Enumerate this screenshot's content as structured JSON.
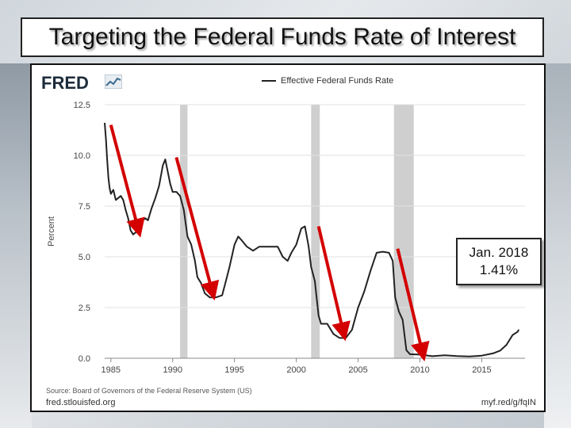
{
  "slide": {
    "title": "Targeting the Federal Funds Rate of Interest",
    "callout_line1": "Jan. 2018",
    "callout_line2": "1.41%"
  },
  "fred": {
    "logo": "FRED",
    "source": "Source: Board of Governors of the Federal Reserve System (US)",
    "footer_left": "fred.stlouisfed.org",
    "footer_right": "myf.red/g/fqIN"
  },
  "colors": {
    "series": "#222222",
    "recession": "#cfcfcf",
    "arrow": "#d40000"
  },
  "chart_data": {
    "type": "line",
    "title": "",
    "xlabel": "",
    "ylabel": "Percent",
    "xlim": [
      1984.5,
      2018.5
    ],
    "ylim": [
      0,
      12.5
    ],
    "yticks": [
      0.0,
      2.5,
      5.0,
      7.5,
      10.0,
      12.5
    ],
    "ytick_labels": [
      "0.0",
      "2.5",
      "5.0",
      "7.5",
      "10.0",
      "12.5"
    ],
    "xticks": [
      1985,
      1990,
      1995,
      2000,
      2005,
      2010,
      2015
    ],
    "xtick_labels": [
      "1985",
      "1990",
      "1995",
      "2000",
      "2005",
      "2010",
      "2015"
    ],
    "recessions": [
      [
        1990.6,
        1991.2
      ],
      [
        2001.2,
        2001.9
      ],
      [
        2007.9,
        2009.5
      ]
    ],
    "series": [
      {
        "name": "Effective Federal Funds Rate",
        "x": [
          1984.5,
          1984.6,
          1984.7,
          1984.8,
          1984.9,
          1985.0,
          1985.2,
          1985.4,
          1985.6,
          1985.8,
          1986.0,
          1986.2,
          1986.4,
          1986.6,
          1986.8,
          1987.0,
          1987.2,
          1987.4,
          1987.6,
          1987.8,
          1988.0,
          1988.3,
          1988.6,
          1988.9,
          1989.2,
          1989.4,
          1989.6,
          1989.8,
          1990.0,
          1990.3,
          1990.6,
          1990.9,
          1991.2,
          1991.5,
          1991.8,
          1992.0,
          1992.3,
          1992.6,
          1993.0,
          1993.5,
          1994.0,
          1994.3,
          1994.6,
          1995.0,
          1995.3,
          1995.6,
          1996.0,
          1996.5,
          1997.0,
          1997.5,
          1998.0,
          1998.5,
          1998.9,
          1999.3,
          1999.6,
          2000.0,
          2000.4,
          2000.7,
          2001.0,
          2001.2,
          2001.5,
          2001.8,
          2002.0,
          2002.5,
          2003.0,
          2003.5,
          2004.0,
          2004.5,
          2005.0,
          2005.5,
          2006.0,
          2006.5,
          2007.0,
          2007.5,
          2007.8,
          2008.0,
          2008.3,
          2008.6,
          2008.9,
          2009.2,
          2010.0,
          2011.0,
          2012.0,
          2013.0,
          2014.0,
          2015.0,
          2015.9,
          2016.5,
          2017.0,
          2017.5,
          2017.9,
          2018.0
        ],
        "y": [
          11.6,
          10.8,
          9.8,
          8.9,
          8.4,
          8.1,
          8.3,
          7.8,
          7.9,
          8.0,
          7.8,
          7.3,
          6.9,
          6.3,
          6.1,
          6.2,
          6.4,
          6.7,
          6.8,
          6.9,
          6.8,
          7.4,
          7.9,
          8.5,
          9.5,
          9.8,
          9.2,
          8.6,
          8.2,
          8.2,
          8.0,
          7.3,
          6.0,
          5.6,
          4.8,
          4.0,
          3.7,
          3.2,
          3.0,
          3.0,
          3.1,
          3.8,
          4.5,
          5.6,
          6.0,
          5.8,
          5.5,
          5.3,
          5.5,
          5.5,
          5.5,
          5.5,
          5.0,
          4.8,
          5.2,
          5.6,
          6.4,
          6.5,
          5.5,
          4.5,
          3.8,
          2.1,
          1.7,
          1.7,
          1.2,
          1.0,
          1.0,
          1.4,
          2.5,
          3.3,
          4.3,
          5.2,
          5.25,
          5.2,
          4.8,
          3.0,
          2.3,
          1.9,
          0.4,
          0.2,
          0.18,
          0.1,
          0.15,
          0.11,
          0.09,
          0.13,
          0.24,
          0.38,
          0.66,
          1.15,
          1.3,
          1.41
        ]
      }
    ],
    "arrows": [
      {
        "from": [
          1985.0,
          11.5
        ],
        "to": [
          1987.2,
          6.4
        ]
      },
      {
        "from": [
          1990.3,
          9.9
        ],
        "to": [
          1993.2,
          3.3
        ]
      },
      {
        "from": [
          2001.8,
          6.5
        ],
        "to": [
          2003.8,
          1.3
        ]
      },
      {
        "from": [
          2008.2,
          5.4
        ],
        "to": [
          2010.2,
          0.3
        ]
      }
    ]
  }
}
